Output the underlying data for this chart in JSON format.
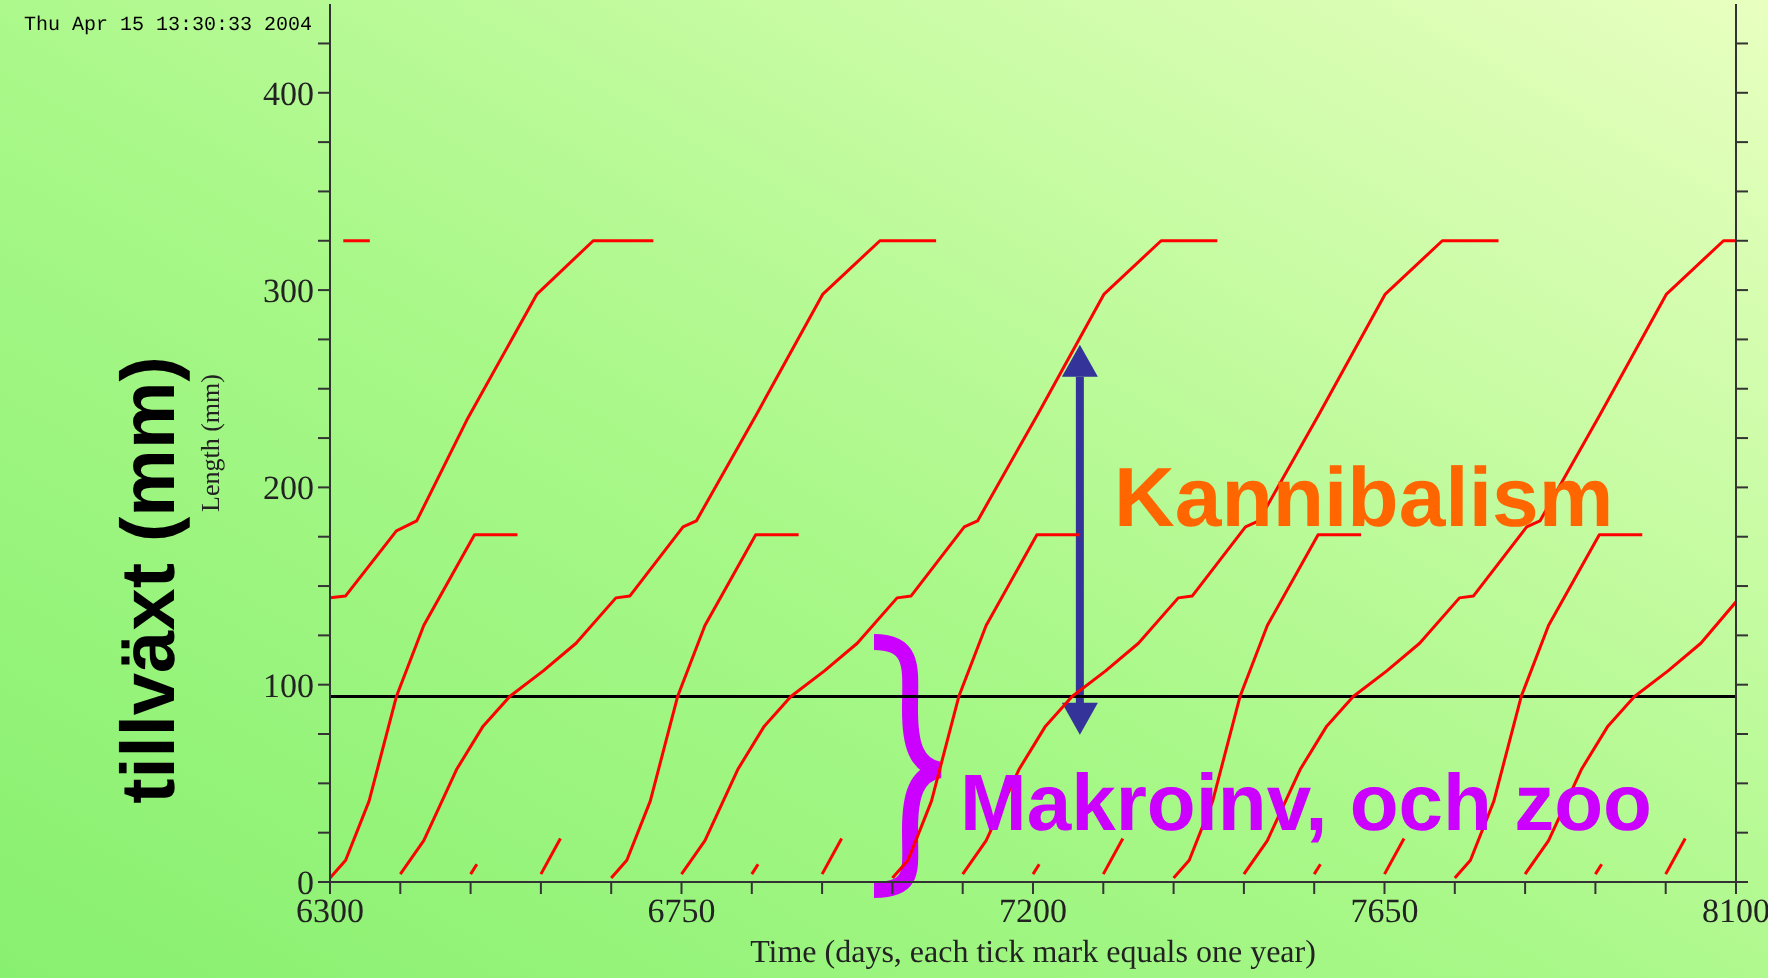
{
  "chart_data": {
    "type": "line",
    "xlabel": "Time (days, each tick mark equals one year)",
    "ylabel": "Length (mm)",
    "annotations": [
      "Thu Apr 15 13:30:33 2004",
      "tillväxt (mm)",
      {
        "text": "Kannibalism",
        "x": 7260,
        "y": 180
      },
      "Makroinv, och zoo"
    ],
    "xlim": [
      6300,
      8100
    ],
    "ylim": [
      0,
      445
    ],
    "xticks": [
      6300,
      {
        "value": 6390,
        "label": null
      },
      {
        "value": 6480,
        "label": null
      },
      {
        "value": 6570,
        "label": null
      },
      {
        "value": 6660,
        "label": null
      },
      6750,
      {
        "value": 6840,
        "label": null
      },
      {
        "value": 6930,
        "label": null
      },
      {
        "value": 7020,
        "label": null
      },
      {
        "value": 7110,
        "label": null
      },
      7200,
      {
        "value": 7290,
        "label": null
      },
      {
        "value": 7380,
        "label": null
      },
      {
        "value": 7470,
        "label": null
      },
      {
        "value": 7560,
        "label": null
      },
      7650,
      {
        "value": 7740,
        "label": null
      },
      {
        "value": 7830,
        "label": null
      },
      {
        "value": 7920,
        "label": null
      },
      {
        "value": 8010,
        "label": null
      },
      8100
    ],
    "yticks": [
      0,
      {
        "value": 25,
        "label": null
      },
      {
        "value": 50,
        "label": null
      },
      {
        "value": 75,
        "label": null
      },
      100,
      {
        "value": 125,
        "label": null
      },
      {
        "value": 150,
        "label": null
      },
      {
        "value": 175,
        "label": null
      },
      200,
      {
        "value": 225,
        "label": null
      },
      {
        "value": 250,
        "label": null
      },
      {
        "value": 275,
        "label": null
      },
      300,
      {
        "value": 325,
        "label": null
      },
      {
        "value": 350,
        "label": null
      },
      {
        "value": 375,
        "label": null
      },
      400,
      {
        "value": 425,
        "label": null
      }
    ],
    "ref_lines": [
      {
        "axis": "y",
        "value": 94,
        "color": "#000000"
      }
    ],
    "series": [
      {
        "color": "#ff0000",
        "x": [
          6317,
          6351
        ],
        "values": [
          325,
          325
        ]
      },
      {
        "color": "#ff0000",
        "x": [
          6300,
          6320,
          6385,
          6411,
          6475,
          6565,
          6637,
          6714
        ],
        "values": [
          144,
          145,
          178,
          183,
          234,
          298,
          325,
          325
        ]
      },
      {
        "color": "#ff0000",
        "x": [
          6300,
          6320,
          6350,
          6385,
          6420,
          6485,
          6540
        ],
        "values": [
          2,
          11,
          41,
          94,
          130,
          176,
          176
        ]
      },
      {
        "color": "#ff0000",
        "x": [
          6390,
          6420,
          6462,
          6496,
          6530,
          6573,
          6615,
          6666,
          6684,
          6752,
          6769,
          6846,
          6931,
          7004,
          7076
        ],
        "values": [
          4,
          21,
          57,
          79,
          94,
          107,
          121,
          144,
          145,
          180,
          183,
          237,
          298,
          325,
          325
        ]
      },
      {
        "color": "#ff0000",
        "x": [
          6480,
          6488
        ],
        "values": [
          4,
          9
        ]
      },
      {
        "color": "#ff0000",
        "x": [
          6570,
          6595
        ],
        "values": [
          4,
          22
        ]
      },
      {
        "color": "#ff0000",
        "x": [
          6660,
          6680,
          6710,
          6745,
          6780,
          6845,
          6900
        ],
        "values": [
          2,
          11,
          41,
          94,
          130,
          176,
          176
        ]
      },
      {
        "color": "#ff0000",
        "x": [
          6750,
          6780,
          6822,
          6856,
          6890,
          6933,
          6975,
          7026,
          7044,
          7112,
          7129,
          7206,
          7291,
          7364,
          7436
        ],
        "values": [
          4,
          21,
          57,
          79,
          94,
          107,
          121,
          144,
          145,
          180,
          183,
          237,
          298,
          325,
          325
        ]
      },
      {
        "color": "#ff0000",
        "x": [
          6840,
          6848
        ],
        "values": [
          4,
          9
        ]
      },
      {
        "color": "#ff0000",
        "x": [
          6930,
          6955
        ],
        "values": [
          4,
          22
        ]
      },
      {
        "color": "#ff0000",
        "x": [
          7020,
          7040,
          7070,
          7105,
          7140,
          7205,
          7260
        ],
        "values": [
          2,
          11,
          41,
          94,
          130,
          176,
          176
        ]
      },
      {
        "color": "#ff0000",
        "x": [
          7110,
          7140,
          7182,
          7216,
          7250,
          7293,
          7335,
          7386,
          7404,
          7472,
          7489,
          7566,
          7651,
          7724,
          7796
        ],
        "values": [
          4,
          21,
          57,
          79,
          94,
          107,
          121,
          144,
          145,
          180,
          183,
          237,
          298,
          325,
          325
        ]
      },
      {
        "color": "#ff0000",
        "x": [
          7200,
          7208
        ],
        "values": [
          4,
          9
        ]
      },
      {
        "color": "#ff0000",
        "x": [
          7290,
          7315
        ],
        "values": [
          4,
          22
        ]
      },
      {
        "color": "#ff0000",
        "x": [
          7380,
          7400,
          7430,
          7465,
          7500,
          7565,
          7620
        ],
        "values": [
          2,
          11,
          41,
          94,
          130,
          176,
          176
        ]
      },
      {
        "color": "#ff0000",
        "x": [
          7470,
          7500,
          7542,
          7576,
          7610,
          7653,
          7695,
          7746,
          7764,
          7832,
          7849,
          7926,
          8011,
          8084,
          8100
        ],
        "values": [
          4,
          21,
          57,
          79,
          94,
          107,
          121,
          144,
          145,
          180,
          183,
          237,
          298,
          325,
          325
        ]
      },
      {
        "color": "#ff0000",
        "x": [
          7560,
          7568
        ],
        "values": [
          4,
          9
        ]
      },
      {
        "color": "#ff0000",
        "x": [
          7650,
          7675
        ],
        "values": [
          4,
          22
        ]
      },
      {
        "color": "#ff0000",
        "x": [
          7740,
          7760,
          7790,
          7825,
          7860,
          7925,
          7980
        ],
        "values": [
          2,
          11,
          41,
          94,
          130,
          176,
          176
        ]
      },
      {
        "color": "#ff0000",
        "x": [
          7830,
          7860,
          7902,
          7936,
          7970,
          8013,
          8055,
          8100
        ],
        "values": [
          4,
          21,
          57,
          79,
          94,
          107,
          121,
          142
        ]
      },
      {
        "color": "#ff0000",
        "x": [
          7920,
          7928
        ],
        "values": [
          4,
          9
        ]
      },
      {
        "color": "#ff0000",
        "x": [
          8010,
          8035
        ],
        "values": [
          4,
          22
        ]
      }
    ]
  }
}
